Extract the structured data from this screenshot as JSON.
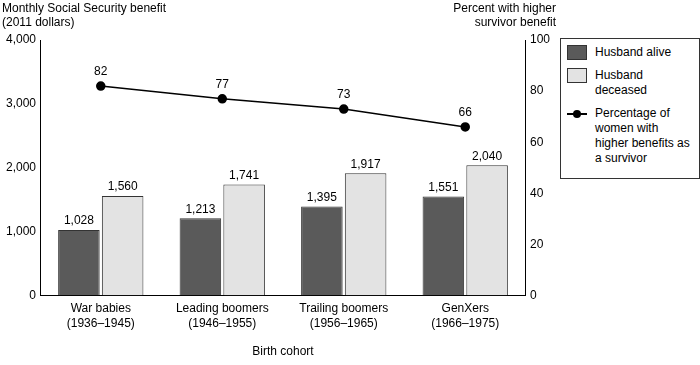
{
  "chart_data": {
    "type": "bar",
    "x_label": "Birth cohort",
    "y_label": "Monthly Social Security benefit\n(2011 dollars)",
    "y2_label": "Percent with higher\nsurvivor benefit",
    "categories": [
      "War babies\n(1936–1945)",
      "Leading boomers\n(1946–1955)",
      "Trailing boomers\n(1956–1965)",
      "GenXers\n(1966–1975)"
    ],
    "series": [
      {
        "name": "Husband alive",
        "color": "#5a5a5a",
        "values": [
          1028,
          1213,
          1395,
          1551
        ],
        "value_labels": [
          "1,028",
          "1,213",
          "1,395",
          "1,551"
        ]
      },
      {
        "name": "Husband deceased",
        "color": "#e3e3e3",
        "values": [
          1560,
          1741,
          1917,
          2040
        ],
        "value_labels": [
          "1,560",
          "1,741",
          "1,917",
          "2,040"
        ]
      },
      {
        "name": "Percentage of women with higher benefits as a survivor",
        "type": "line",
        "axis": "y2",
        "color": "#000000",
        "marker": "circle",
        "values": [
          82,
          77,
          73,
          66
        ]
      }
    ],
    "ylim": [
      0,
      4000
    ],
    "yticks": [
      0,
      {
        "value": 1000,
        "label": "1,000"
      },
      {
        "value": 2000,
        "label": "2,000"
      },
      {
        "value": 3000,
        "label": "3,000"
      },
      {
        "value": 4000,
        "label": "4,000"
      }
    ],
    "y2lim": [
      0,
      100
    ],
    "y2ticks": [
      0,
      20,
      40,
      60,
      80,
      100
    ],
    "grid": false,
    "legend": "right",
    "data_labels": true
  }
}
